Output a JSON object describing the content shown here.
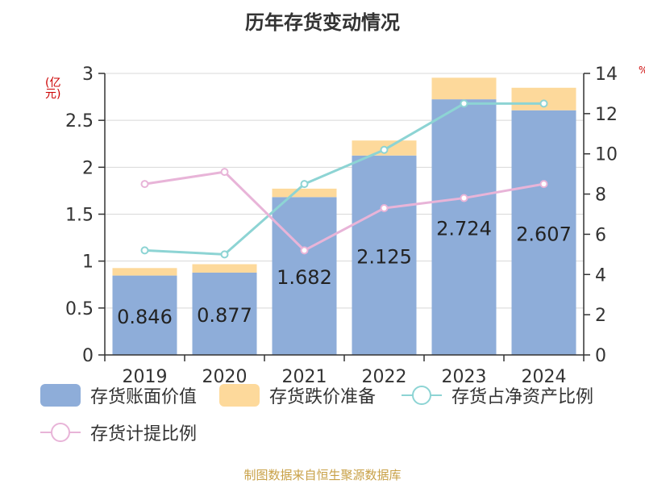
{
  "title": "历年存货变动情况",
  "unit_left": "(亿元)",
  "unit_right": "%",
  "source": "制图数据来自恒生聚源数据库",
  "colors": {
    "book_value": "#8eadd9",
    "impairment": "#fdd99b",
    "ratio_net_assets": "#8dd4d4",
    "provision_ratio": "#e8b4d8",
    "axis": "#333333",
    "grid": "#d8d8d8"
  },
  "legend": [
    {
      "label": "存货账面价值",
      "kind": "bar",
      "color_key": "book_value"
    },
    {
      "label": "存货跌价准备",
      "kind": "bar",
      "color_key": "impairment"
    },
    {
      "label": "存货占净资产比例",
      "kind": "line",
      "color_key": "ratio_net_assets"
    },
    {
      "label": "存货计提比例",
      "kind": "line",
      "color_key": "provision_ratio"
    }
  ],
  "chart_data": {
    "type": "bar",
    "title": "历年存货变动情况",
    "categories": [
      "2019",
      "2020",
      "2021",
      "2022",
      "2023",
      "2024"
    ],
    "y_left": {
      "label": "(亿元)",
      "range": [
        0,
        3
      ],
      "ticks": [
        "0",
        "0.5",
        "1",
        "1.5",
        "2",
        "2.5",
        "3"
      ],
      "tick_values": [
        0,
        0.5,
        1,
        1.5,
        2,
        2.5,
        3
      ]
    },
    "y_right": {
      "label": "%",
      "range": [
        0,
        14
      ],
      "ticks": [
        "0",
        "2",
        "4",
        "6",
        "8",
        "10",
        "12",
        "14"
      ],
      "tick_values": [
        0,
        2,
        4,
        6,
        8,
        10,
        12,
        14
      ]
    },
    "grid": true,
    "series": [
      {
        "name": "存货账面价值",
        "type": "bar",
        "axis": "left",
        "stack": "inv",
        "values": [
          0.846,
          0.877,
          1.682,
          2.125,
          2.724,
          2.607
        ],
        "labels": [
          "0.846",
          "0.877",
          "1.682",
          "2.125",
          "2.724",
          "2.607"
        ]
      },
      {
        "name": "存货跌价准备",
        "type": "bar",
        "axis": "left",
        "stack": "inv",
        "values": [
          0.08,
          0.09,
          0.09,
          0.16,
          0.23,
          0.24
        ]
      },
      {
        "name": "存货占净资产比例",
        "type": "line",
        "axis": "right",
        "values": [
          5.2,
          5.0,
          8.5,
          10.2,
          12.5,
          12.5
        ]
      },
      {
        "name": "存货计提比例",
        "type": "line",
        "axis": "right",
        "values": [
          8.5,
          9.1,
          5.2,
          7.3,
          7.8,
          8.5
        ]
      }
    ],
    "legend_position": "bottom"
  }
}
